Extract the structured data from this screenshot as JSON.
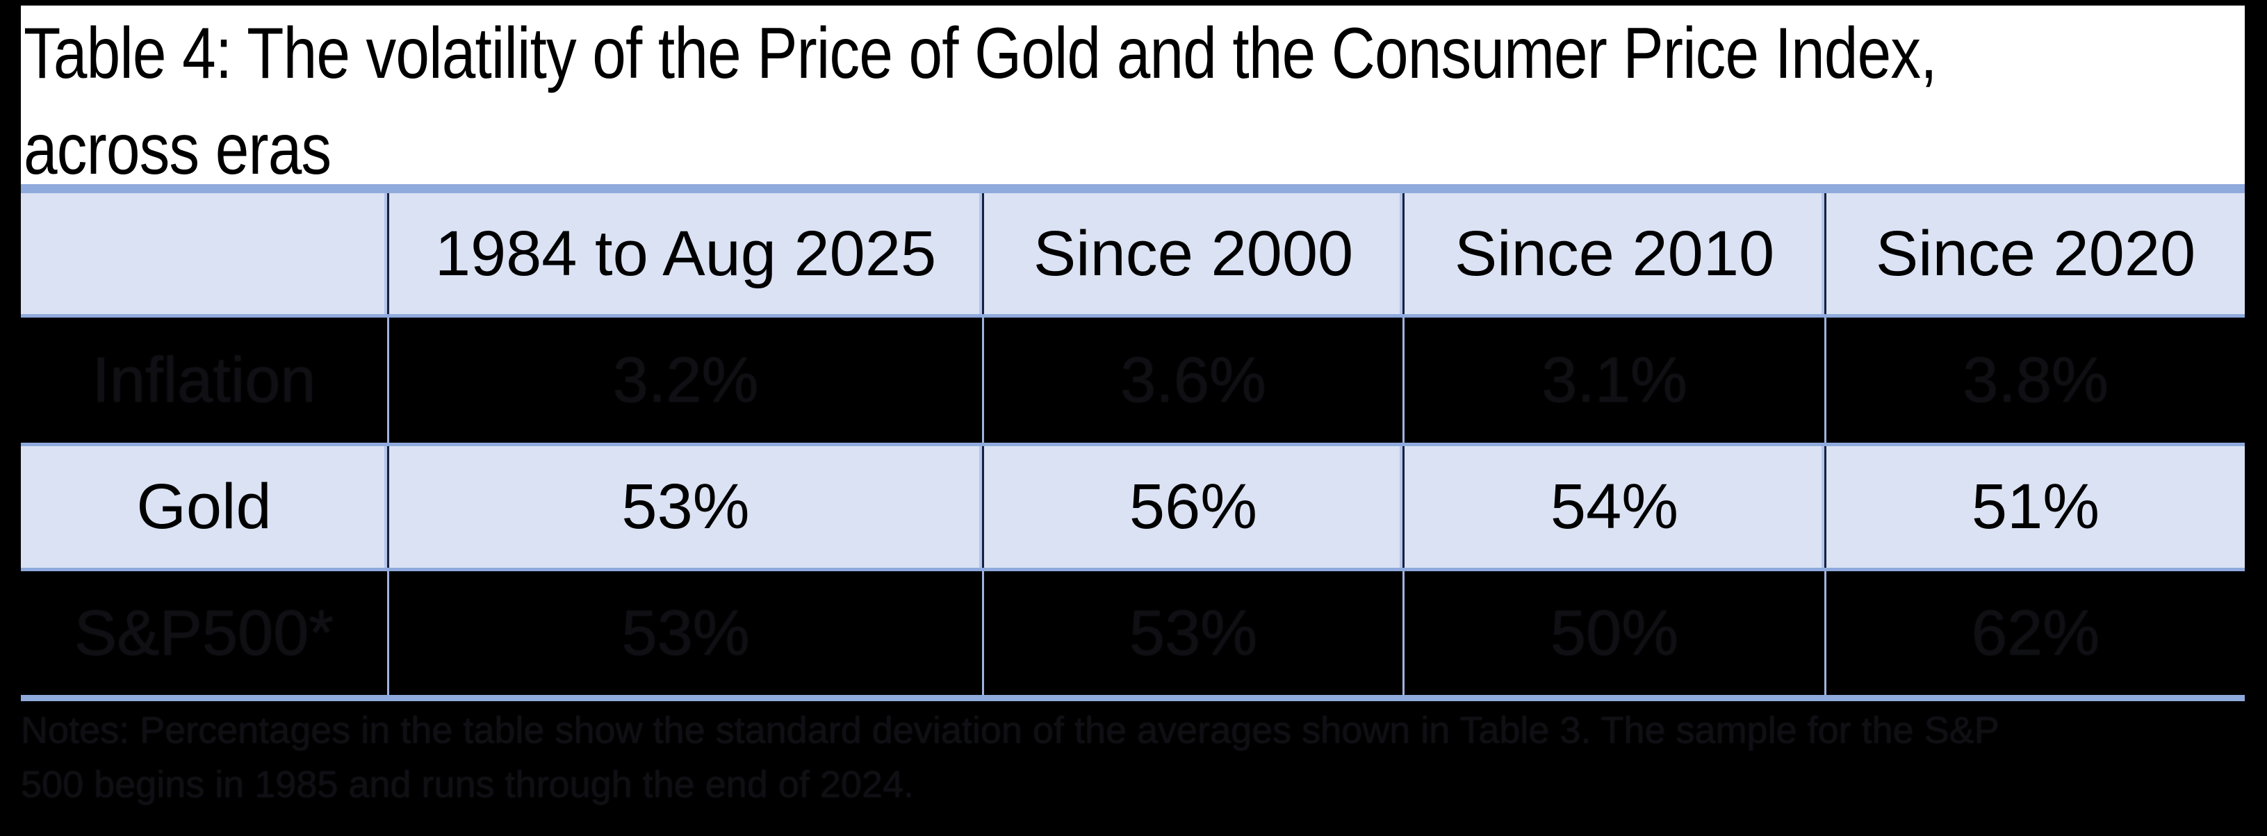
{
  "header": {
    "title_line1": "Table 4: The volatility of the Price of Gold and the Consumer Price Index,",
    "title_line2": "across eras"
  },
  "table": {
    "columns": [
      "",
      "1984 to Aug 2025",
      "Since 2000",
      "Since 2010",
      "Since 2020"
    ],
    "rows": [
      {
        "label": "Inflation",
        "values": [
          "3.2%",
          "3.6%",
          "3.1%",
          "3.8%"
        ]
      },
      {
        "label": "Gold",
        "values": [
          "53%",
          "56%",
          "54%",
          "51%"
        ]
      },
      {
        "label": "S&P500*",
        "values": [
          "53%",
          "53%",
          "50%",
          "62%"
        ]
      }
    ]
  },
  "footnote": {
    "line1": "Notes: Percentages in the table show the standard deviation of the averages shown in Table 3. The sample for the S&P",
    "line2": "500 begins in 1985 and runs through the end of 2024."
  },
  "colors": {
    "accent_bar": "#8faadc",
    "row_light_bg": "#dae2f3",
    "row_dark_bg": "#000000",
    "gridline_dark": "#16203f",
    "gridline_light": "#9fb3e0",
    "hidden_text": "#101014"
  },
  "chart_data": {
    "type": "table",
    "title": "Table 4: The volatility of the Price of Gold and the Consumer Price Index, across eras",
    "columns": [
      "",
      "1984 to Aug 2025",
      "Since 2000",
      "Since 2010",
      "Since 2020"
    ],
    "rows": [
      {
        "label": "Inflation",
        "values": [
          "3.2%",
          "3.6%",
          "3.1%",
          "3.8%"
        ]
      },
      {
        "label": "Gold",
        "values": [
          "53%",
          "56%",
          "54%",
          "51%"
        ]
      },
      {
        "label": "S&P500*",
        "values": [
          "53%",
          "53%",
          "50%",
          "62%"
        ]
      }
    ],
    "notes": "Notes: Percentages in the table show the standard deviation of the averages shown in Table 3. The sample for the S&P 500 begins in 1985 and runs through the end of 2024."
  }
}
